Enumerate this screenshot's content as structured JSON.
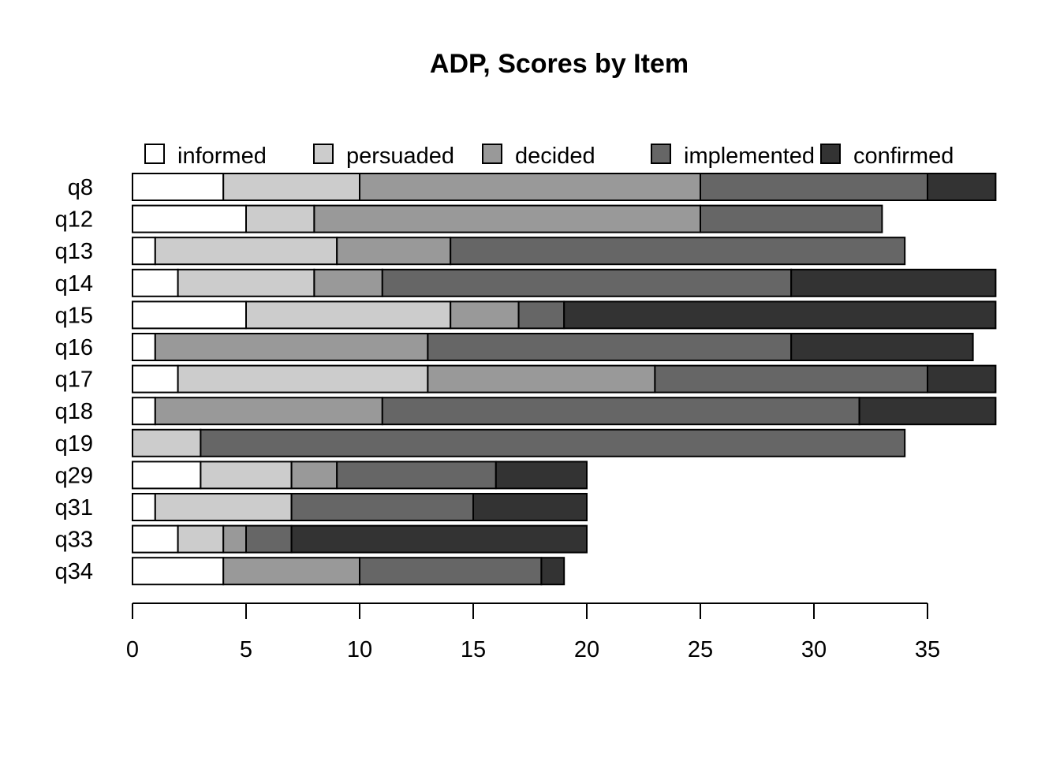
{
  "chart_data": {
    "type": "bar",
    "orientation": "horizontal",
    "stacked": true,
    "title": "ADP, Scores by Item",
    "xlabel": "",
    "ylabel": "",
    "xlim": [
      0,
      38
    ],
    "x_ticks": [
      0,
      5,
      10,
      15,
      20,
      25,
      30,
      35
    ],
    "grid": false,
    "legend_position": "top",
    "categories": [
      "q8",
      "q12",
      "q13",
      "q14",
      "q15",
      "q16",
      "q17",
      "q18",
      "q19",
      "q29",
      "q31",
      "q33",
      "q34"
    ],
    "series": [
      {
        "name": "informed",
        "color": "#ffffff",
        "values": [
          4,
          5,
          1,
          2,
          5,
          1,
          2,
          1,
          0,
          3,
          1,
          2,
          4
        ]
      },
      {
        "name": "persuaded",
        "color": "#cccccc",
        "values": [
          6,
          3,
          8,
          6,
          9,
          0,
          11,
          0,
          3,
          4,
          6,
          2,
          0
        ]
      },
      {
        "name": "decided",
        "color": "#999999",
        "values": [
          15,
          17,
          5,
          3,
          3,
          12,
          10,
          10,
          0,
          2,
          0,
          1,
          6
        ]
      },
      {
        "name": "implemented",
        "color": "#666666",
        "values": [
          10,
          8,
          20,
          18,
          2,
          16,
          12,
          21,
          31,
          7,
          8,
          2,
          8
        ]
      },
      {
        "name": "confirmed",
        "color": "#333333",
        "values": [
          3,
          0,
          0,
          9,
          19,
          8,
          3,
          6,
          0,
          4,
          5,
          13,
          1
        ]
      }
    ]
  }
}
